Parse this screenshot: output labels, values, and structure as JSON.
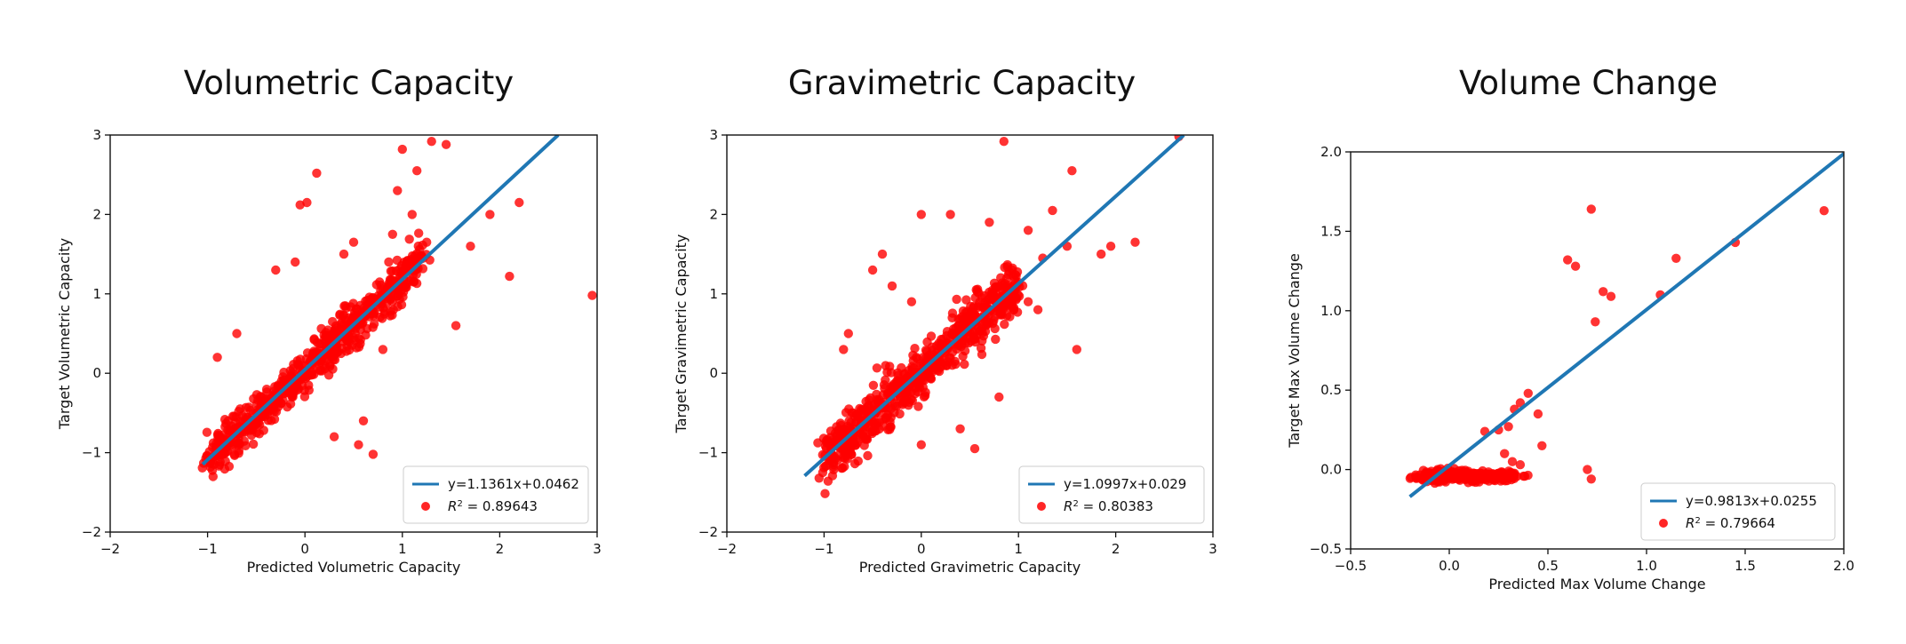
{
  "chart_data": [
    {
      "type": "scatter",
      "title": "Volumetric Capacity",
      "xlabel": "Predicted Volumetric Capacity",
      "ylabel": "Target Volumetric Capacity",
      "xlim": [
        -2,
        3
      ],
      "ylim": [
        -2,
        3
      ],
      "xticks": [
        "−2",
        "−1",
        "0",
        "1",
        "2",
        "3"
      ],
      "yticks": [
        "−2",
        "−1",
        "0",
        "1",
        "2",
        "3"
      ],
      "fit": {
        "slope": 1.1361,
        "intercept": 0.0462,
        "x_range": [
          -1.05,
          2.6
        ],
        "label": "y=1.1361x+0.0462"
      },
      "r2_label": "= 0.89643",
      "legend": "bottom-right",
      "colors": {
        "fit": "#1f77b4",
        "points": "#ff0000"
      },
      "cloud": {
        "count": 650,
        "xmin": -1.0,
        "xmax": 1.2,
        "noise": 0.2
      },
      "outliers": [
        [
          2.95,
          0.98
        ],
        [
          1.0,
          2.82
        ],
        [
          1.3,
          2.92
        ],
        [
          1.45,
          2.88
        ],
        [
          0.95,
          2.3
        ],
        [
          1.15,
          2.55
        ],
        [
          0.12,
          2.52
        ],
        [
          0.02,
          2.15
        ],
        [
          -0.05,
          2.12
        ],
        [
          2.2,
          2.15
        ],
        [
          2.1,
          1.22
        ],
        [
          1.9,
          2.0
        ],
        [
          1.7,
          1.6
        ],
        [
          1.55,
          0.6
        ],
        [
          0.8,
          0.3
        ],
        [
          0.6,
          -0.6
        ],
        [
          0.55,
          -0.9
        ],
        [
          0.7,
          -1.02
        ],
        [
          0.3,
          -0.8
        ],
        [
          -0.3,
          1.3
        ],
        [
          -0.1,
          1.4
        ],
        [
          0.4,
          1.5
        ],
        [
          1.25,
          1.65
        ],
        [
          0.9,
          1.75
        ],
        [
          -0.9,
          0.2
        ],
        [
          -0.7,
          0.5
        ],
        [
          1.1,
          2.0
        ],
        [
          0.5,
          1.65
        ]
      ]
    },
    {
      "type": "scatter",
      "title": "Gravimetric Capacity",
      "xlabel": "Predicted Gravimetric Capacity",
      "ylabel": "Target Gravimetric Capacity",
      "xlim": [
        -2,
        3
      ],
      "ylim": [
        -2,
        3
      ],
      "xticks": [
        "−2",
        "−1",
        "0",
        "1",
        "2",
        "3"
      ],
      "yticks": [
        "−2",
        "−1",
        "0",
        "1",
        "2",
        "3"
      ],
      "fit": {
        "slope": 1.0997,
        "intercept": 0.029,
        "x_range": [
          -1.2,
          2.7
        ],
        "label": "y=1.0997x+0.029"
      },
      "r2_label": "= 0.80383",
      "legend": "bottom-right",
      "colors": {
        "fit": "#1f77b4",
        "points": "#ff0000"
      },
      "cloud": {
        "count": 650,
        "xmin": -1.0,
        "xmax": 1.0,
        "noise": 0.25
      },
      "outliers": [
        [
          0.85,
          2.92
        ],
        [
          2.65,
          2.98
        ],
        [
          1.55,
          2.55
        ],
        [
          1.35,
          2.05
        ],
        [
          1.5,
          1.6
        ],
        [
          1.85,
          1.5
        ],
        [
          2.2,
          1.65
        ],
        [
          1.95,
          1.6
        ],
        [
          1.1,
          1.8
        ],
        [
          0.3,
          2.0
        ],
        [
          0.0,
          2.0
        ],
        [
          0.7,
          1.9
        ],
        [
          1.6,
          0.3
        ],
        [
          1.2,
          0.8
        ],
        [
          0.8,
          -0.3
        ],
        [
          0.4,
          -0.7
        ],
        [
          0.0,
          -0.9
        ],
        [
          -0.3,
          1.1
        ],
        [
          -0.5,
          1.3
        ],
        [
          -0.4,
          1.5
        ],
        [
          -0.8,
          0.3
        ],
        [
          -0.75,
          0.5
        ],
        [
          0.55,
          -0.95
        ],
        [
          1.1,
          0.9
        ],
        [
          -0.1,
          0.9
        ],
        [
          1.25,
          1.45
        ]
      ]
    },
    {
      "type": "scatter",
      "title": "Volume Change",
      "xlabel": "Predicted Max Volume Change",
      "ylabel": "Target Max Volume Change",
      "xlim": [
        -0.5,
        2.0
      ],
      "ylim": [
        -0.5,
        2.0
      ],
      "xticks": [
        "−0.5",
        "0.0",
        "0.5",
        "1.0",
        "1.5",
        "2.0"
      ],
      "yticks": [
        "−0.5",
        "0.0",
        "0.5",
        "1.0",
        "1.5",
        "2.0"
      ],
      "fit": {
        "slope": 0.9813,
        "intercept": 0.0255,
        "x_range": [
          -0.2,
          2.0
        ],
        "label": "y=0.9813x+0.0255"
      },
      "r2_label": "= 0.79664",
      "legend": "bottom-right",
      "colors": {
        "fit": "#1f77b4",
        "points": "#ff0000"
      },
      "cloud": {
        "count": 260,
        "xmin": -0.15,
        "xmax": 0.35,
        "noise": 0.025,
        "flat": -0.04
      },
      "outliers": [
        [
          0.72,
          1.64
        ],
        [
          1.9,
          1.63
        ],
        [
          0.6,
          1.32
        ],
        [
          0.64,
          1.28
        ],
        [
          1.15,
          1.33
        ],
        [
          1.45,
          1.43
        ],
        [
          0.78,
          1.12
        ],
        [
          0.82,
          1.09
        ],
        [
          1.07,
          1.1
        ],
        [
          0.74,
          0.93
        ],
        [
          0.4,
          0.48
        ],
        [
          0.36,
          0.42
        ],
        [
          0.33,
          0.38
        ],
        [
          0.45,
          0.35
        ],
        [
          0.3,
          0.27
        ],
        [
          0.25,
          0.25
        ],
        [
          0.47,
          0.15
        ],
        [
          0.7,
          0.0
        ],
        [
          0.72,
          -0.06
        ],
        [
          0.18,
          0.24
        ],
        [
          0.28,
          0.1
        ],
        [
          0.32,
          0.05
        ],
        [
          0.36,
          0.03
        ]
      ]
    }
  ]
}
